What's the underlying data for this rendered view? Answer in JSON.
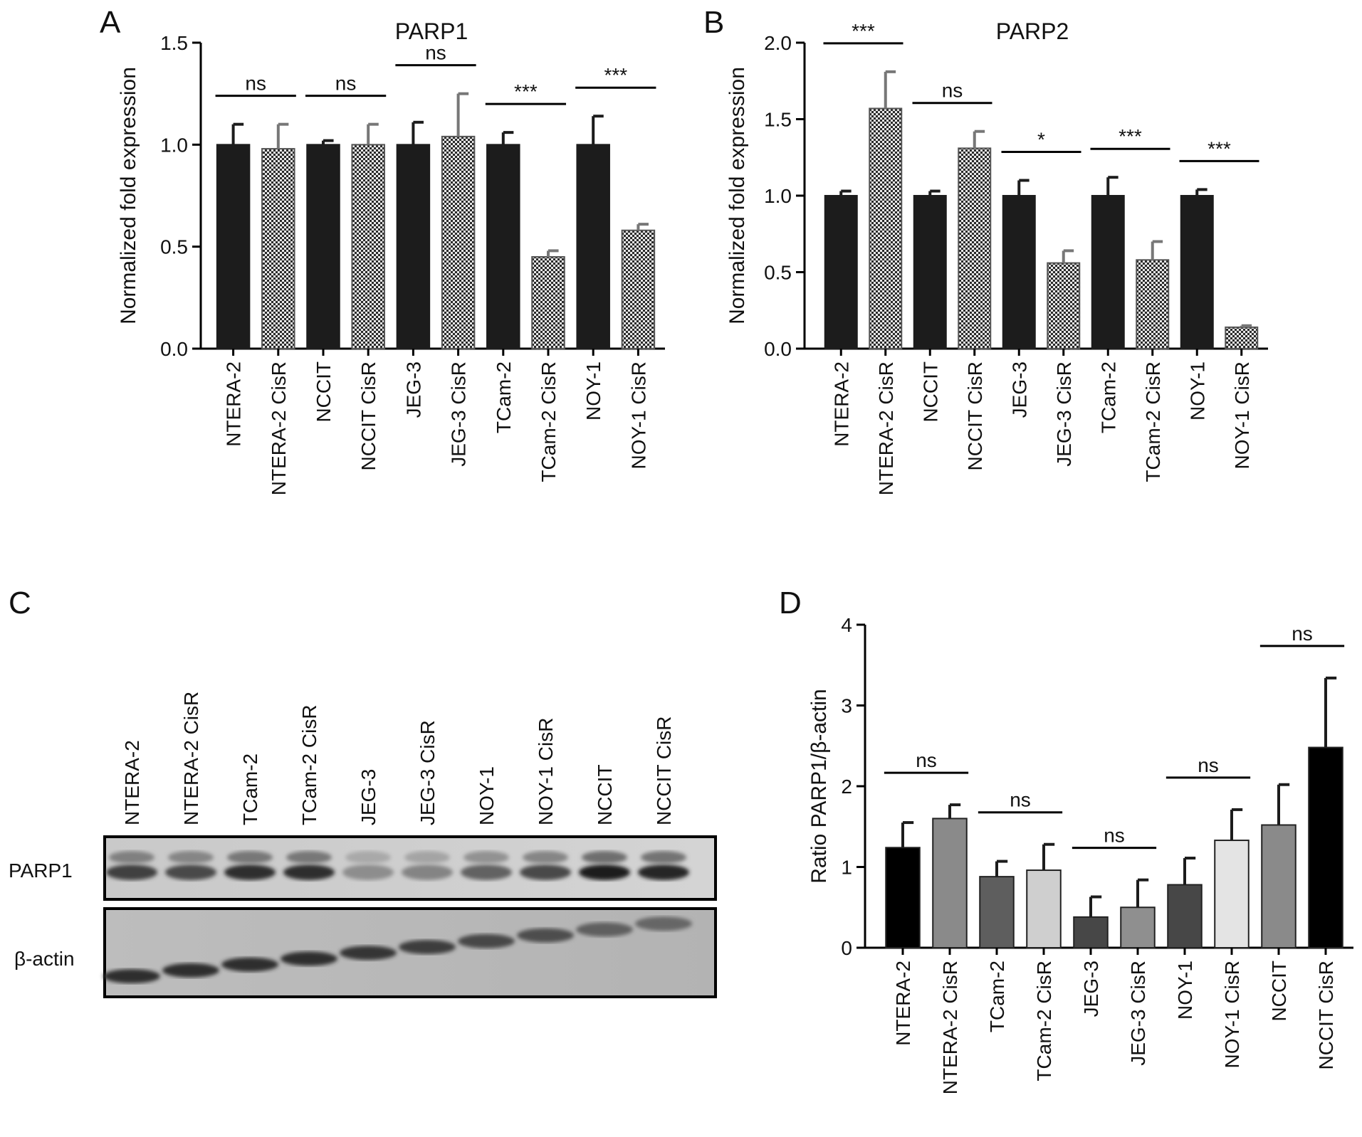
{
  "chart_data": [
    {
      "panel": "A",
      "type": "bar",
      "title": "PARP1",
      "ylabel": "Normalized fold expression",
      "ylim": [
        0,
        1.5
      ],
      "yticks": [
        "0.0",
        "0.5",
        "1.0",
        "1.5"
      ],
      "categories": [
        "NTERA-2",
        "NTERA-2 CisR",
        "NCCIT",
        "NCCIT CisR",
        "JEG-3",
        "JEG-3 CisR",
        "TCam-2",
        "TCam-2 CisR",
        "NOY-1",
        "NOY-1 CisR"
      ],
      "values": [
        1.0,
        0.98,
        1.0,
        1.0,
        1.0,
        1.04,
        1.0,
        0.45,
        1.0,
        0.58
      ],
      "errors": [
        0.1,
        0.12,
        0.02,
        0.1,
        0.11,
        0.21,
        0.06,
        0.03,
        0.14,
        0.03
      ],
      "fills": [
        "solid",
        "checker",
        "solid",
        "checker",
        "solid",
        "checker",
        "solid",
        "checker",
        "solid",
        "checker"
      ],
      "significance": [
        {
          "pair": [
            0,
            1
          ],
          "label": "ns"
        },
        {
          "pair": [
            2,
            3
          ],
          "label": "ns"
        },
        {
          "pair": [
            4,
            5
          ],
          "label": "ns"
        },
        {
          "pair": [
            6,
            7
          ],
          "label": "***"
        },
        {
          "pair": [
            8,
            9
          ],
          "label": "***"
        }
      ]
    },
    {
      "panel": "B",
      "type": "bar",
      "title": "PARP2",
      "ylabel": "Normalized fold expression",
      "ylim": [
        0,
        2.0
      ],
      "yticks": [
        "0.0",
        "0.5",
        "1.0",
        "1.5",
        "2.0"
      ],
      "categories": [
        "NTERA-2",
        "NTERA-2 CisR",
        "NCCIT",
        "NCCIT CisR",
        "JEG-3",
        "JEG-3 CisR",
        "TCam-2",
        "TCam-2 CisR",
        "NOY-1",
        "NOY-1 CisR"
      ],
      "values": [
        1.0,
        1.57,
        1.0,
        1.31,
        1.0,
        0.56,
        1.0,
        0.58,
        1.0,
        0.14
      ],
      "errors": [
        0.03,
        0.24,
        0.03,
        0.11,
        0.1,
        0.08,
        0.12,
        0.12,
        0.04,
        0.01
      ],
      "fills": [
        "solid",
        "checker",
        "solid",
        "checker",
        "solid",
        "checker",
        "solid",
        "checker",
        "solid",
        "checker"
      ],
      "significance": [
        {
          "pair": [
            0,
            1
          ],
          "label": "***"
        },
        {
          "pair": [
            2,
            3
          ],
          "label": "ns"
        },
        {
          "pair": [
            4,
            5
          ],
          "label": "*"
        },
        {
          "pair": [
            6,
            7
          ],
          "label": "***"
        },
        {
          "pair": [
            8,
            9
          ],
          "label": "***"
        }
      ]
    },
    {
      "panel": "D",
      "type": "bar",
      "title": "",
      "ylabel": "Ratio PARP1/β-actin",
      "ylim": [
        0,
        4
      ],
      "yticks": [
        "0",
        "1",
        "2",
        "3",
        "4"
      ],
      "categories": [
        "NTERA-2",
        "NTERA-2 CisR",
        "TCam-2",
        "TCam-2 CisR",
        "JEG-3",
        "JEG-3 CisR",
        "NOY-1",
        "NOY-1 CisR",
        "NCCIT",
        "NCCIT CisR"
      ],
      "values": [
        1.24,
        1.6,
        0.88,
        0.96,
        0.38,
        0.5,
        0.78,
        1.33,
        1.52,
        2.48
      ],
      "errors": [
        0.31,
        0.17,
        0.19,
        0.32,
        0.25,
        0.34,
        0.33,
        0.38,
        0.5,
        0.86
      ],
      "colors": [
        "#000000",
        "#8a8a8a",
        "#5e5e5e",
        "#cfcfcf",
        "#474747",
        "#8f8f8f",
        "#474747",
        "#e4e4e4",
        "#8a8a8a",
        "#000000"
      ],
      "significance": [
        {
          "pair": [
            0,
            1
          ],
          "label": "ns"
        },
        {
          "pair": [
            2,
            3
          ],
          "label": "ns"
        },
        {
          "pair": [
            4,
            5
          ],
          "label": "ns"
        },
        {
          "pair": [
            6,
            7
          ],
          "label": "ns"
        },
        {
          "pair": [
            8,
            9
          ],
          "label": "ns"
        }
      ]
    }
  ],
  "panel_labels": {
    "a": "A",
    "b": "B",
    "c": "C",
    "d": "D"
  },
  "western_blot": {
    "lanes": [
      "NTERA-2",
      "NTERA-2 CisR",
      "TCam-2",
      "TCam-2 CisR",
      "JEG-3",
      "JEG-3 CisR",
      "NOY-1",
      "NOY-1 CisR",
      "NCCIT",
      "NCCIT CisR"
    ],
    "rows": [
      "PARP1",
      "β-actin"
    ],
    "parp1_intensity": [
      0.8,
      0.75,
      0.9,
      0.9,
      0.35,
      0.4,
      0.6,
      0.75,
      1.0,
      0.95
    ],
    "actin_intensity": [
      0.9,
      0.9,
      0.9,
      0.9,
      0.85,
      0.8,
      0.75,
      0.7,
      0.6,
      0.55
    ]
  }
}
